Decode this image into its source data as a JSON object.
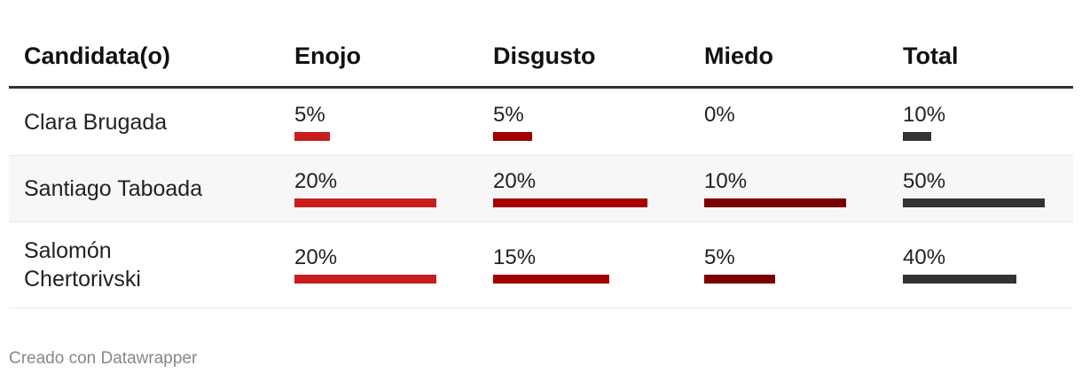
{
  "table": {
    "header": [
      "Candidata(o)",
      "Enojo",
      "Disgusto",
      "Miedo",
      "Total"
    ],
    "colors": [
      "#c71e1d",
      "#a30000",
      "#7a0000",
      "#333333"
    ],
    "rows": [
      {
        "name": "Clara Brugada",
        "values": [
          5,
          5,
          0,
          10
        ],
        "value_labels": [
          "5%",
          "5%",
          "0%",
          "10%"
        ]
      },
      {
        "name": "Santiago Taboada",
        "values": [
          20,
          20,
          10,
          50
        ],
        "value_labels": [
          "20%",
          "20%",
          "10%",
          "50%"
        ]
      },
      {
        "name": "Salomón Chertorivski",
        "values": [
          20,
          15,
          5,
          40
        ],
        "value_labels": [
          "20%",
          "15%",
          "5%",
          "40%"
        ]
      }
    ]
  },
  "footer": "Creado con Datawrapper"
}
